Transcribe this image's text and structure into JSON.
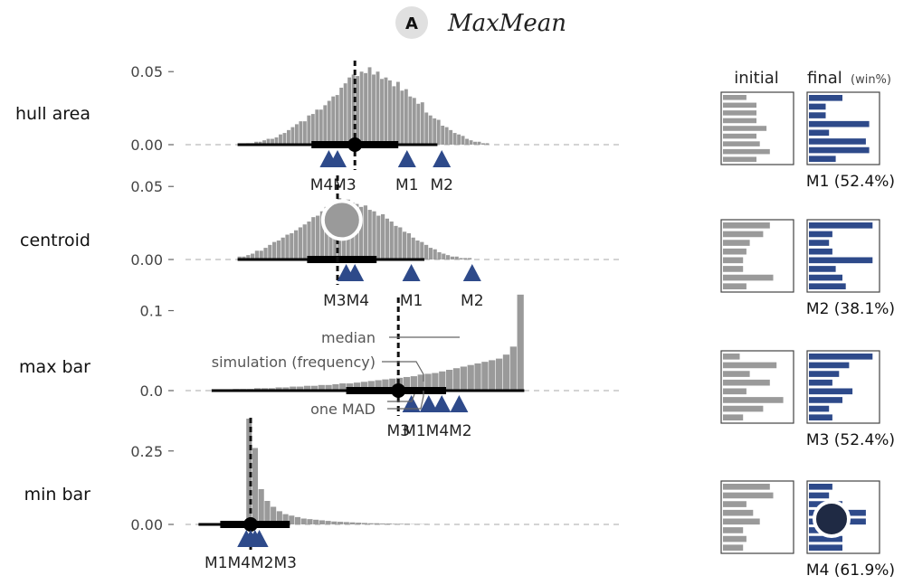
{
  "title": {
    "badge": "A",
    "text": "MaxMean"
  },
  "thumb_headers": {
    "initial": "initial",
    "final": "final",
    "final_unit": "(win%)"
  },
  "colors": {
    "hist": "#9a9a9a",
    "marker": "#2e4a8a",
    "band": "#000000",
    "thumb_initial": "#9a9a9a",
    "thumb_final": "#2e4a8a",
    "hover_circle": "#9a9a9a",
    "dark_circle": "#1f2a44"
  },
  "annotations": {
    "median": "median",
    "simulation": "simulation (frequency)",
    "mad": "one MAD"
  },
  "chart_data": [
    {
      "type": "histogram",
      "row_label": "hull area",
      "yticks": [
        "0.05",
        "0.00"
      ],
      "ylim": [
        0,
        0.065
      ],
      "xlim": [
        0,
        1
      ],
      "hist": [
        0.001,
        0.001,
        0.002,
        0.002,
        0.003,
        0.004,
        0.004,
        0.005,
        0.007,
        0.008,
        0.01,
        0.012,
        0.014,
        0.016,
        0.016,
        0.02,
        0.021,
        0.024,
        0.024,
        0.027,
        0.03,
        0.033,
        0.034,
        0.039,
        0.042,
        0.046,
        0.048,
        0.047,
        0.05,
        0.049,
        0.053,
        0.048,
        0.05,
        0.045,
        0.046,
        0.044,
        0.04,
        0.043,
        0.037,
        0.038,
        0.033,
        0.032,
        0.028,
        0.029,
        0.022,
        0.02,
        0.018,
        0.017,
        0.013,
        0.012,
        0.01,
        0.008,
        0.007,
        0.006,
        0.004,
        0.003,
        0.002,
        0.002,
        0.001,
        0.001
      ],
      "hist_range": [
        0.14,
        0.7
      ],
      "median": 0.39,
      "mad": [
        0.29,
        0.49
      ],
      "range": [
        0.12,
        0.58
      ],
      "median_dot": true,
      "markers": [
        {
          "name": "M4",
          "x": 0.33
        },
        {
          "name": "M3",
          "x": 0.35
        },
        {
          "name": "M1",
          "x": 0.51
        },
        {
          "name": "M2",
          "x": 0.59
        }
      ],
      "marker_labels": [
        {
          "text": "M4M3",
          "x": 0.34
        },
        {
          "text": "M1",
          "x": 0.51
        },
        {
          "text": "M2",
          "x": 0.59
        }
      ],
      "thumb_initial": [
        0.35,
        0.5,
        0.5,
        0.5,
        0.65,
        0.5,
        0.55,
        0.7,
        0.5
      ],
      "thumb_final": [
        0.5,
        0.25,
        0.25,
        0.9,
        0.3,
        0.85,
        0.9,
        0.4
      ],
      "result": "M1 (52.4%)"
    },
    {
      "type": "histogram",
      "row_label": "centroid",
      "yticks": [
        "0.05",
        "0.00"
      ],
      "ylim": [
        0,
        0.065
      ],
      "xlim": [
        0,
        1
      ],
      "hist": [
        0.002,
        0.002,
        0.003,
        0.004,
        0.006,
        0.006,
        0.008,
        0.01,
        0.012,
        0.013,
        0.015,
        0.017,
        0.018,
        0.02,
        0.022,
        0.024,
        0.026,
        0.029,
        0.03,
        0.033,
        0.036,
        0.036,
        0.04,
        0.042,
        0.038,
        0.041,
        0.039,
        0.038,
        0.036,
        0.037,
        0.034,
        0.033,
        0.03,
        0.031,
        0.028,
        0.026,
        0.023,
        0.022,
        0.019,
        0.018,
        0.015,
        0.013,
        0.012,
        0.01,
        0.008,
        0.007,
        0.005,
        0.004,
        0.003,
        0.002,
        0.002,
        0.001,
        0.001,
        0.001
      ],
      "hist_range": [
        0.12,
        0.66
      ],
      "median": 0.35,
      "mad": [
        0.28,
        0.44
      ],
      "range": [
        0.12,
        0.55
      ],
      "median_dot": false,
      "hover_circle": {
        "x": 0.36,
        "y": 0.027
      },
      "markers": [
        {
          "name": "M3",
          "x": 0.37
        },
        {
          "name": "M4",
          "x": 0.39
        },
        {
          "name": "M1",
          "x": 0.52
        },
        {
          "name": "M2",
          "x": 0.66
        }
      ],
      "marker_labels": [
        {
          "text": "M3M4",
          "x": 0.37
        },
        {
          "text": "M1",
          "x": 0.52
        },
        {
          "text": "M2",
          "x": 0.66
        }
      ],
      "thumb_initial": [
        0.7,
        0.6,
        0.4,
        0.35,
        0.3,
        0.3,
        0.75,
        0.35
      ],
      "thumb_final": [
        0.95,
        0.35,
        0.3,
        0.35,
        0.95,
        0.4,
        0.5,
        0.55
      ],
      "result": "M2 (38.1%)"
    },
    {
      "type": "histogram",
      "row_label": "max bar",
      "yticks": [
        "0.1",
        "0.0"
      ],
      "ylim": [
        0,
        0.13
      ],
      "xlim": [
        0,
        1
      ],
      "hist": [
        0.001,
        0.001,
        0.001,
        0.002,
        0.002,
        0.002,
        0.003,
        0.003,
        0.003,
        0.004,
        0.004,
        0.005,
        0.005,
        0.006,
        0.006,
        0.007,
        0.007,
        0.008,
        0.009,
        0.009,
        0.01,
        0.011,
        0.012,
        0.013,
        0.014,
        0.015,
        0.016,
        0.017,
        0.018,
        0.02,
        0.021,
        0.022,
        0.024,
        0.026,
        0.028,
        0.03,
        0.032,
        0.034,
        0.036,
        0.038,
        0.04,
        0.045,
        0.055,
        0.12
      ],
      "hist_range": [
        0.06,
        0.78
      ],
      "median": 0.49,
      "mad": [
        0.37,
        0.6
      ],
      "range": [
        0.06,
        0.78
      ],
      "median_dot": true,
      "markers": [
        {
          "name": "M3",
          "x": 0.52
        },
        {
          "name": "M1",
          "x": 0.56
        },
        {
          "name": "M4",
          "x": 0.59
        },
        {
          "name": "M2",
          "x": 0.63
        }
      ],
      "marker_labels": [
        {
          "text": "M3",
          "x": 0.49
        },
        {
          "text": "M1M4M2",
          "x": 0.58
        }
      ],
      "thumb_initial": [
        0.25,
        0.8,
        0.4,
        0.7,
        0.35,
        0.9,
        0.6,
        0.3
      ],
      "thumb_final": [
        0.95,
        0.6,
        0.45,
        0.35,
        0.65,
        0.5,
        0.3,
        0.35
      ],
      "result": "M3 (52.4%)"
    },
    {
      "type": "histogram",
      "row_label": "min bar",
      "yticks": [
        "0.25",
        "0.00"
      ],
      "ylim": [
        0,
        0.4
      ],
      "xlim": [
        0,
        1
      ],
      "hist": [
        0.36,
        0.26,
        0.12,
        0.08,
        0.06,
        0.045,
        0.035,
        0.03,
        0.025,
        0.02,
        0.018,
        0.016,
        0.014,
        0.012,
        0.01,
        0.009,
        0.008,
        0.007,
        0.006,
        0.005,
        0.004,
        0.004,
        0.003,
        0.003,
        0.002,
        0.002,
        0.002,
        0.001,
        0.001,
        0.001
      ],
      "hist_range": [
        0.14,
        0.56
      ],
      "median": 0.15,
      "mad": [
        0.08,
        0.24
      ],
      "range": [
        0.03,
        0.24
      ],
      "median_dot": true,
      "markers": [
        {
          "name": "M1",
          "x": 0.14
        },
        {
          "name": "M4",
          "x": 0.15
        },
        {
          "name": "M2",
          "x": 0.16
        },
        {
          "name": "M3",
          "x": 0.17
        }
      ],
      "marker_labels": [
        {
          "text": "M1M4M2M3",
          "x": 0.15
        }
      ],
      "thumb_initial": [
        0.7,
        0.75,
        0.35,
        0.45,
        0.55,
        0.3,
        0.35,
        0.3
      ],
      "thumb_final": [
        0.35,
        0.3,
        0.5,
        0.85,
        0.85,
        0.5,
        0.5,
        0.5
      ],
      "thumb_dark_circle": true,
      "result": "M4 (61.9%)"
    }
  ]
}
